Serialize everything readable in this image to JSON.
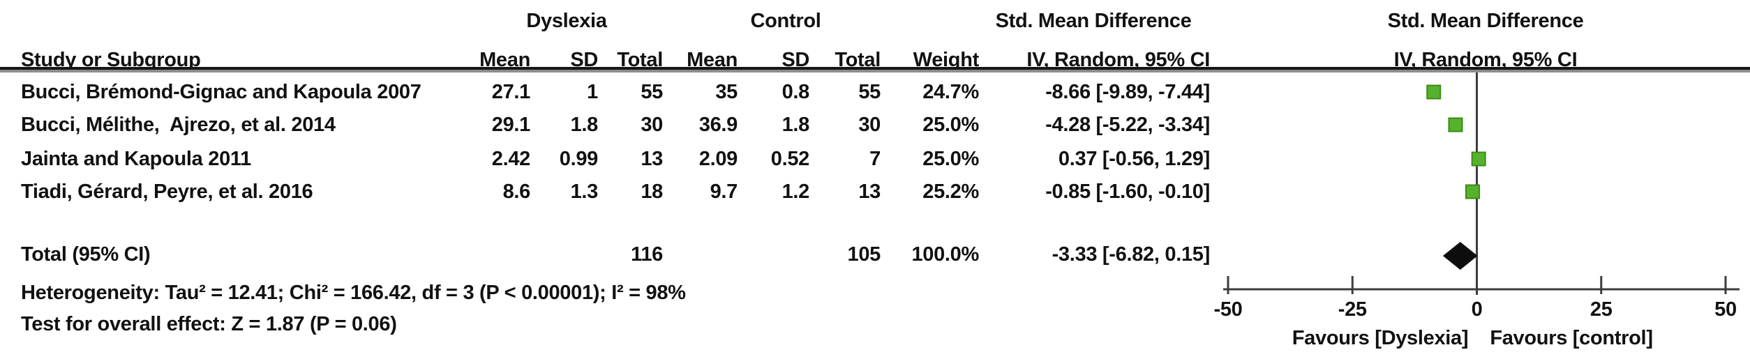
{
  "figure": {
    "header": {
      "study_col": "Study or Subgroup",
      "group_dyslexia": "Dyslexia",
      "group_control": "Control",
      "smd_col": "Std. Mean Difference",
      "mean": "Mean",
      "sd": "SD",
      "total": "Total",
      "weight": "Weight",
      "iv_random": "IV, Random, 95% CI",
      "plot_title_line1": "Std. Mean Difference",
      "plot_title_line2": "IV, Random, 95% CI"
    },
    "rows": [
      {
        "study": "Bucci, Brémond-Gignac and Kapoula 2007",
        "d_mean": "27.1",
        "d_sd": "1",
        "d_total": "55",
        "c_mean": "35",
        "c_sd": "0.8",
        "c_total": "55",
        "weight": "24.7%",
        "ci": "-8.66 [-9.89, -7.44]"
      },
      {
        "study": "Bucci, Mélithe,  Ajrezo, et al. 2014",
        "d_mean": "29.1",
        "d_sd": "1.8",
        "d_total": "30",
        "c_mean": "36.9",
        "c_sd": "1.8",
        "c_total": "30",
        "weight": "25.0%",
        "ci": "-4.28 [-5.22, -3.34]"
      },
      {
        "study": "Jainta and Kapoula 2011",
        "d_mean": "2.42",
        "d_sd": "0.99",
        "d_total": "13",
        "c_mean": "2.09",
        "c_sd": "0.52",
        "c_total": "7",
        "weight": "25.0%",
        "ci": "0.37 [-0.56, 1.29]"
      },
      {
        "study": "Tiadi, Gérard, Peyre, et al. 2016",
        "d_mean": "8.6",
        "d_sd": "1.3",
        "d_total": "18",
        "c_mean": "9.7",
        "c_sd": "1.2",
        "c_total": "13",
        "weight": "25.2%",
        "ci": "-0.85 [-1.60, -0.10]"
      }
    ],
    "total_row": {
      "label": "Total (95% CI)",
      "d_total": "116",
      "c_total": "105",
      "weight": "100.0%",
      "ci": "-3.33 [-6.82, 0.15]"
    },
    "footer": {
      "heterogeneity": "Heterogeneity: Tau² = 12.41; Chi² = 166.42, df = 3 (P < 0.00001); I² = 98%",
      "overall_effect": "Test for overall effect: Z = 1.87 (P = 0.06)"
    }
  },
  "chart_data": {
    "type": "forest",
    "title": "Std. Mean Difference — IV, Random, 95% CI",
    "x_axis": {
      "min": -50,
      "max": 50,
      "ticks": [
        -50,
        -25,
        0,
        25,
        50
      ],
      "favours_left": "Favours [Dyslexia]",
      "favours_right": "Favours [control]"
    },
    "studies": [
      {
        "name": "Bucci, Brémond-Gignac and Kapoula 2007",
        "smd": -8.66,
        "ci_low": -9.89,
        "ci_high": -7.44,
        "weight_pct": 24.7
      },
      {
        "name": "Bucci, Mélithe,  Ajrezo, et al. 2014",
        "smd": -4.28,
        "ci_low": -5.22,
        "ci_high": -3.34,
        "weight_pct": 25.0
      },
      {
        "name": "Jainta and Kapoula 2011",
        "smd": 0.37,
        "ci_low": -0.56,
        "ci_high": 1.29,
        "weight_pct": 25.0
      },
      {
        "name": "Tiadi, Gérard, Peyre, et al. 2016",
        "smd": -0.85,
        "ci_low": -1.6,
        "ci_high": -0.1,
        "weight_pct": 25.2
      }
    ],
    "total": {
      "smd": -3.33,
      "ci_low": -6.82,
      "ci_high": 0.15,
      "weight_pct": 100.0
    },
    "marker_color": "#56b22c",
    "marker_border_color": "#3a8b18",
    "diamond_color": "#0d0d0d",
    "line_color": "#3d3d3d"
  }
}
